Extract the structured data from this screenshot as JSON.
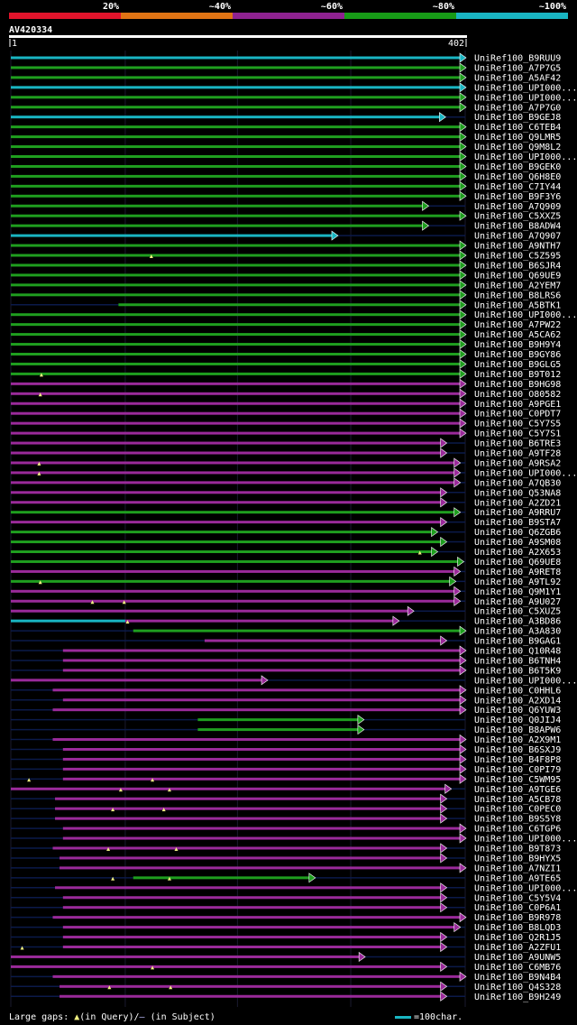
{
  "chart_data": {
    "type": "alignment-overview",
    "query": "AV420334",
    "query_length": 402,
    "axis": {
      "start_label": "1",
      "end_label": "402"
    },
    "identity_legend": [
      {
        "label": "20%",
        "color": "#e0142b"
      },
      {
        "label": "~40%",
        "color": "#e07414"
      },
      {
        "label": "~60%",
        "color": "#8e2290"
      },
      {
        "label": "~80%",
        "color": "#179b17"
      },
      {
        "label": "~100%",
        "color": "#19b5c2"
      }
    ],
    "colors": {
      "cyan": "#19b5c2",
      "green": "#1f9e1f",
      "purple": "#9a2a9a",
      "gap": "#0b1a4a",
      "marker": "#f0f080"
    },
    "hits": [
      {
        "name": "UniRef100_B9RUU9",
        "start": 1,
        "end": 402,
        "color": "cyan"
      },
      {
        "name": "UniRef100_A7P7G5",
        "start": 1,
        "end": 402,
        "color": "green"
      },
      {
        "name": "UniRef100_A5AF42",
        "start": 1,
        "end": 402,
        "color": "green"
      },
      {
        "name": "UniRef100_UPI000...",
        "start": 1,
        "end": 402,
        "color": "cyan"
      },
      {
        "name": "UniRef100_UPI000...",
        "start": 1,
        "end": 402,
        "color": "green"
      },
      {
        "name": "UniRef100_A7P7G0",
        "start": 1,
        "end": 402,
        "color": "green"
      },
      {
        "name": "UniRef100_B9GEJ8",
        "start": 1,
        "end": 384,
        "color": "cyan"
      },
      {
        "name": "UniRef100_C6TEB4",
        "start": 1,
        "end": 402,
        "color": "green"
      },
      {
        "name": "UniRef100_Q9LMR5",
        "start": 1,
        "end": 402,
        "color": "green"
      },
      {
        "name": "UniRef100_Q9M8L2",
        "start": 1,
        "end": 402,
        "color": "green"
      },
      {
        "name": "UniRef100_UPI000...",
        "start": 1,
        "end": 402,
        "color": "green"
      },
      {
        "name": "UniRef100_B9GEK0",
        "start": 1,
        "end": 402,
        "color": "green"
      },
      {
        "name": "UniRef100_Q6H8E0",
        "start": 1,
        "end": 402,
        "color": "green"
      },
      {
        "name": "UniRef100_C7IY44",
        "start": 1,
        "end": 402,
        "color": "green"
      },
      {
        "name": "UniRef100_B9F3Y6",
        "start": 1,
        "end": 402,
        "color": "green"
      },
      {
        "name": "UniRef100_A7Q909",
        "start": 1,
        "end": 369,
        "color": "green"
      },
      {
        "name": "UniRef100_C5XXZ5",
        "start": 1,
        "end": 402,
        "color": "green"
      },
      {
        "name": "UniRef100_B8ADW4",
        "start": 1,
        "end": 369,
        "color": "green"
      },
      {
        "name": "UniRef100_A7Q907",
        "start": 1,
        "end": 289,
        "color": "cyan"
      },
      {
        "name": "UniRef100_A9NTH7",
        "start": 1,
        "end": 402,
        "color": "green"
      },
      {
        "name": "UniRef100_C5Z595",
        "start": 1,
        "end": 402,
        "color": "green"
      },
      {
        "name": "UniRef100_B6SJR4",
        "start": 1,
        "end": 402,
        "color": "green",
        "marks": [
          125
        ]
      },
      {
        "name": "UniRef100_Q69UE9",
        "start": 1,
        "end": 402,
        "color": "green"
      },
      {
        "name": "UniRef100_A2YEM7",
        "start": 1,
        "end": 402,
        "color": "green"
      },
      {
        "name": "UniRef100_B8LRS6",
        "start": 1,
        "end": 402,
        "color": "green"
      },
      {
        "name": "UniRef100_A5BTK1",
        "start": 96,
        "end": 402,
        "color": "green"
      },
      {
        "name": "UniRef100_UPI000...",
        "start": 1,
        "end": 402,
        "color": "green"
      },
      {
        "name": "UniRef100_A7PW22",
        "start": 1,
        "end": 402,
        "color": "green"
      },
      {
        "name": "UniRef100_A5CA62",
        "start": 1,
        "end": 402,
        "color": "green"
      },
      {
        "name": "UniRef100_B9H9Y4",
        "start": 1,
        "end": 402,
        "color": "green"
      },
      {
        "name": "UniRef100_B9GY86",
        "start": 1,
        "end": 402,
        "color": "green"
      },
      {
        "name": "UniRef100_B9GLG5",
        "start": 1,
        "end": 402,
        "color": "green"
      },
      {
        "name": "UniRef100_B9T012",
        "start": 1,
        "end": 402,
        "color": "green"
      },
      {
        "name": "UniRef100_B9HG98",
        "start": 1,
        "end": 402,
        "color": "purple",
        "marks": [
          28
        ]
      },
      {
        "name": "UniRef100_O80582",
        "start": 1,
        "end": 402,
        "color": "purple"
      },
      {
        "name": "UniRef100_A9PGE1",
        "start": 1,
        "end": 402,
        "color": "purple",
        "marks": [
          27
        ]
      },
      {
        "name": "UniRef100_C0PDT7",
        "start": 1,
        "end": 402,
        "color": "purple"
      },
      {
        "name": "UniRef100_C5Y7S5",
        "start": 1,
        "end": 402,
        "color": "purple"
      },
      {
        "name": "UniRef100_C5Y7S1",
        "start": 1,
        "end": 402,
        "color": "purple"
      },
      {
        "name": "UniRef100_B6TRE3",
        "start": 1,
        "end": 385,
        "color": "purple"
      },
      {
        "name": "UniRef100_A9TF28",
        "start": 1,
        "end": 385,
        "color": "purple"
      },
      {
        "name": "UniRef100_A9RSA2",
        "start": 1,
        "end": 397,
        "color": "purple"
      },
      {
        "name": "UniRef100_UPI000...",
        "start": 1,
        "end": 397,
        "color": "purple",
        "marks": [
          26
        ]
      },
      {
        "name": "UniRef100_A7QB30",
        "start": 1,
        "end": 397,
        "color": "purple",
        "marks": [
          26
        ]
      },
      {
        "name": "UniRef100_Q53NA8",
        "start": 1,
        "end": 385,
        "color": "purple"
      },
      {
        "name": "UniRef100_A2ZD21",
        "start": 1,
        "end": 385,
        "color": "purple"
      },
      {
        "name": "UniRef100_A9RRU7",
        "start": 1,
        "end": 397,
        "color": "green"
      },
      {
        "name": "UniRef100_B9STA7",
        "start": 1,
        "end": 385,
        "color": "purple"
      },
      {
        "name": "UniRef100_Q6ZGB6",
        "start": 1,
        "end": 377,
        "color": "green"
      },
      {
        "name": "UniRef100_A9SM08",
        "start": 1,
        "end": 385,
        "color": "green"
      },
      {
        "name": "UniRef100_A2X653",
        "start": 1,
        "end": 377,
        "color": "green"
      },
      {
        "name": "UniRef100_Q69UE8",
        "start": 1,
        "end": 400,
        "color": "green",
        "marks": [
          362
        ]
      },
      {
        "name": "UniRef100_A9RET8",
        "start": 1,
        "end": 397,
        "color": "purple"
      },
      {
        "name": "UniRef100_A9TL92",
        "start": 1,
        "end": 393,
        "color": "green"
      },
      {
        "name": "UniRef100_Q9M1Y1",
        "start": 1,
        "end": 397,
        "color": "purple",
        "marks": [
          27
        ]
      },
      {
        "name": "UniRef100_A9U027",
        "start": 1,
        "end": 397,
        "color": "purple"
      },
      {
        "name": "UniRef100_C5XUZ5",
        "start": 1,
        "end": 356,
        "color": "purple",
        "marks": [
          73,
          101
        ]
      },
      {
        "name": "UniRef100_A3BD86",
        "start": 1,
        "end": 343,
        "color": "purple",
        "cyan_until": 102
      },
      {
        "name": "UniRef100_A3A830",
        "start": 109,
        "end": 402,
        "color": "green",
        "marks": [
          104
        ]
      },
      {
        "name": "UniRef100_B9GAG1",
        "start": 172,
        "end": 385,
        "color": "purple"
      },
      {
        "name": "UniRef100_Q10R48",
        "start": 47,
        "end": 402,
        "color": "purple"
      },
      {
        "name": "UniRef100_B6TNH4",
        "start": 47,
        "end": 402,
        "color": "purple"
      },
      {
        "name": "UniRef100_B6T5K9",
        "start": 47,
        "end": 402,
        "color": "purple"
      },
      {
        "name": "UniRef100_UPI000...",
        "start": 1,
        "end": 227,
        "color": "purple"
      },
      {
        "name": "UniRef100_C0HHL6",
        "start": 38,
        "end": 402,
        "color": "purple"
      },
      {
        "name": "UniRef100_A2XD14",
        "start": 47,
        "end": 402,
        "color": "purple"
      },
      {
        "name": "UniRef100_Q6YUW3",
        "start": 38,
        "end": 402,
        "color": "purple"
      },
      {
        "name": "UniRef100_Q0JIJ4",
        "start": 166,
        "end": 312,
        "color": "green"
      },
      {
        "name": "UniRef100_B8APW6",
        "start": 166,
        "end": 312,
        "color": "green"
      },
      {
        "name": "UniRef100_A2X9M1",
        "start": 38,
        "end": 402,
        "color": "purple"
      },
      {
        "name": "UniRef100_B6SXJ9",
        "start": 47,
        "end": 402,
        "color": "purple"
      },
      {
        "name": "UniRef100_B4F8P8",
        "start": 47,
        "end": 402,
        "color": "purple"
      },
      {
        "name": "UniRef100_C0PI79",
        "start": 47,
        "end": 402,
        "color": "purple"
      },
      {
        "name": "UniRef100_C5WM95",
        "start": 47,
        "end": 402,
        "color": "purple"
      },
      {
        "name": "UniRef100_A9TGE6",
        "start": 1,
        "end": 389,
        "color": "purple",
        "marks": [
          17,
          126
        ]
      },
      {
        "name": "UniRef100_A5CB78",
        "start": 40,
        "end": 385,
        "color": "purple",
        "marks": [
          98,
          141
        ]
      },
      {
        "name": "UniRef100_C0PEC0",
        "start": 40,
        "end": 385,
        "color": "purple"
      },
      {
        "name": "UniRef100_B9S5Y8",
        "start": 40,
        "end": 385,
        "color": "purple",
        "marks": [
          91,
          136
        ]
      },
      {
        "name": "UniRef100_C6TGP6",
        "start": 47,
        "end": 402,
        "color": "purple"
      },
      {
        "name": "UniRef100_UPI000...",
        "start": 47,
        "end": 402,
        "color": "purple"
      },
      {
        "name": "UniRef100_B9T873",
        "start": 38,
        "end": 385,
        "color": "purple"
      },
      {
        "name": "UniRef100_B9HYX5",
        "start": 44,
        "end": 385,
        "color": "purple",
        "marks": [
          87,
          147
        ]
      },
      {
        "name": "UniRef100_A7NZI1",
        "start": 44,
        "end": 402,
        "color": "purple"
      },
      {
        "name": "UniRef100_A9TE65",
        "start": 109,
        "end": 269,
        "color": "green"
      },
      {
        "name": "UniRef100_UPI000...",
        "start": 40,
        "end": 385,
        "color": "purple",
        "marks": [
          91,
          141
        ]
      },
      {
        "name": "UniRef100_C5Y5V4",
        "start": 47,
        "end": 385,
        "color": "purple"
      },
      {
        "name": "UniRef100_C0P6A1",
        "start": 47,
        "end": 385,
        "color": "purple"
      },
      {
        "name": "UniRef100_B9R978",
        "start": 38,
        "end": 402,
        "color": "purple"
      },
      {
        "name": "UniRef100_B8LQD3",
        "start": 47,
        "end": 397,
        "color": "purple"
      },
      {
        "name": "UniRef100_Q2R1J5",
        "start": 47,
        "end": 385,
        "color": "purple"
      },
      {
        "name": "UniRef100_A2ZFU1",
        "start": 47,
        "end": 385,
        "color": "purple"
      },
      {
        "name": "UniRef100_A9UNW5",
        "start": 1,
        "end": 313,
        "color": "purple",
        "marks": [
          11
        ]
      },
      {
        "name": "UniRef100_C6MB76",
        "start": 1,
        "end": 385,
        "color": "purple"
      },
      {
        "name": "UniRef100_B9N4B4",
        "start": 38,
        "end": 402,
        "color": "purple",
        "marks": [
          126
        ]
      },
      {
        "name": "UniRef100_Q4S328",
        "start": 44,
        "end": 385,
        "color": "purple"
      },
      {
        "name": "UniRef100_B9H249",
        "start": 44,
        "end": 385,
        "color": "purple",
        "marks": [
          88,
          142
        ]
      }
    ]
  },
  "footer": {
    "gaps_prefix": "Large gaps: ",
    "gaps_query": "(in Query)/",
    "gaps_subject": " (in Subject)",
    "scale_label": "=100char."
  }
}
